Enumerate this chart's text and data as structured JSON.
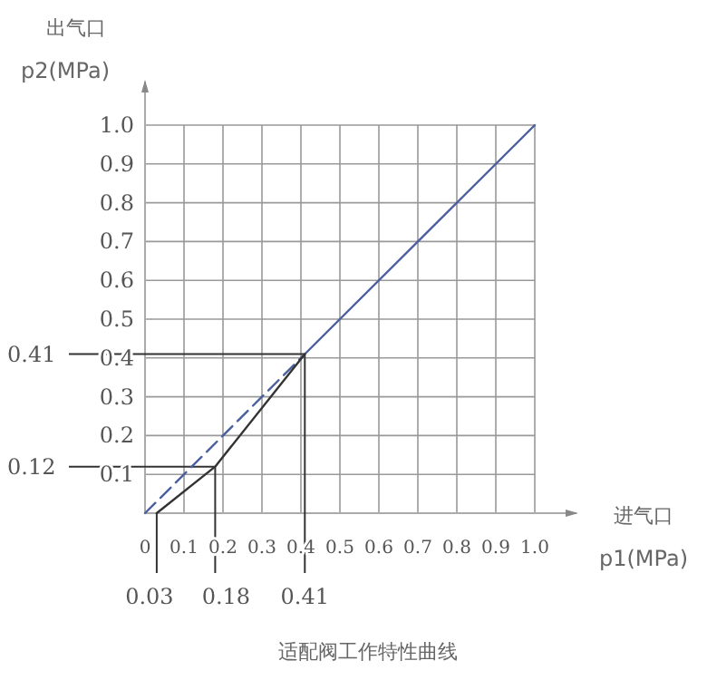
{
  "chart_data": {
    "type": "line",
    "title": "适配阀工作特性曲线",
    "xlabel": "进气口 p1(MPa)",
    "ylabel": "出气口 p2(MPa)",
    "xlim": [
      0,
      1.0
    ],
    "ylim": [
      0,
      1.0
    ],
    "xticks": [
      0,
      0.1,
      0.2,
      0.3,
      0.4,
      0.5,
      0.6,
      0.7,
      0.8,
      0.9,
      {
        "value": 1.0,
        "label": "1.0"
      }
    ],
    "yticks": [
      0.1,
      0.2,
      0.3,
      0.4,
      0.5,
      0.6,
      0.7,
      0.8,
      0.9,
      {
        "value": 1.0,
        "label": "1.0"
      }
    ],
    "grid": true,
    "series": [
      {
        "color": "#4a5f9f",
        "line_style": "dashed",
        "x": [
          0,
          0.41
        ],
        "values": [
          0,
          0.41
        ]
      },
      {
        "color": "#4a5f9f",
        "line_style": "solid",
        "x": [
          0.41,
          1.0
        ],
        "values": [
          0.41,
          1.0
        ]
      },
      {
        "color": "#333333",
        "line_style": "solid",
        "x": [
          0.03,
          0.18,
          0.41
        ],
        "values": [
          0,
          0.12,
          0.41
        ]
      }
    ],
    "ref_lines": [
      {
        "axis": "y",
        "value": 0.41,
        "label": "0.41",
        "color": "#333333"
      },
      {
        "axis": "y",
        "value": 0.12,
        "label": "0.12",
        "color": "#333333"
      },
      {
        "axis": "x",
        "value": 0.03,
        "label": "0.03",
        "color": "#333333"
      },
      {
        "axis": "x",
        "value": 0.18,
        "label": "0.18",
        "color": "#333333"
      },
      {
        "axis": "x",
        "value": 0.41,
        "label": "0.41",
        "color": "#333333"
      }
    ]
  }
}
